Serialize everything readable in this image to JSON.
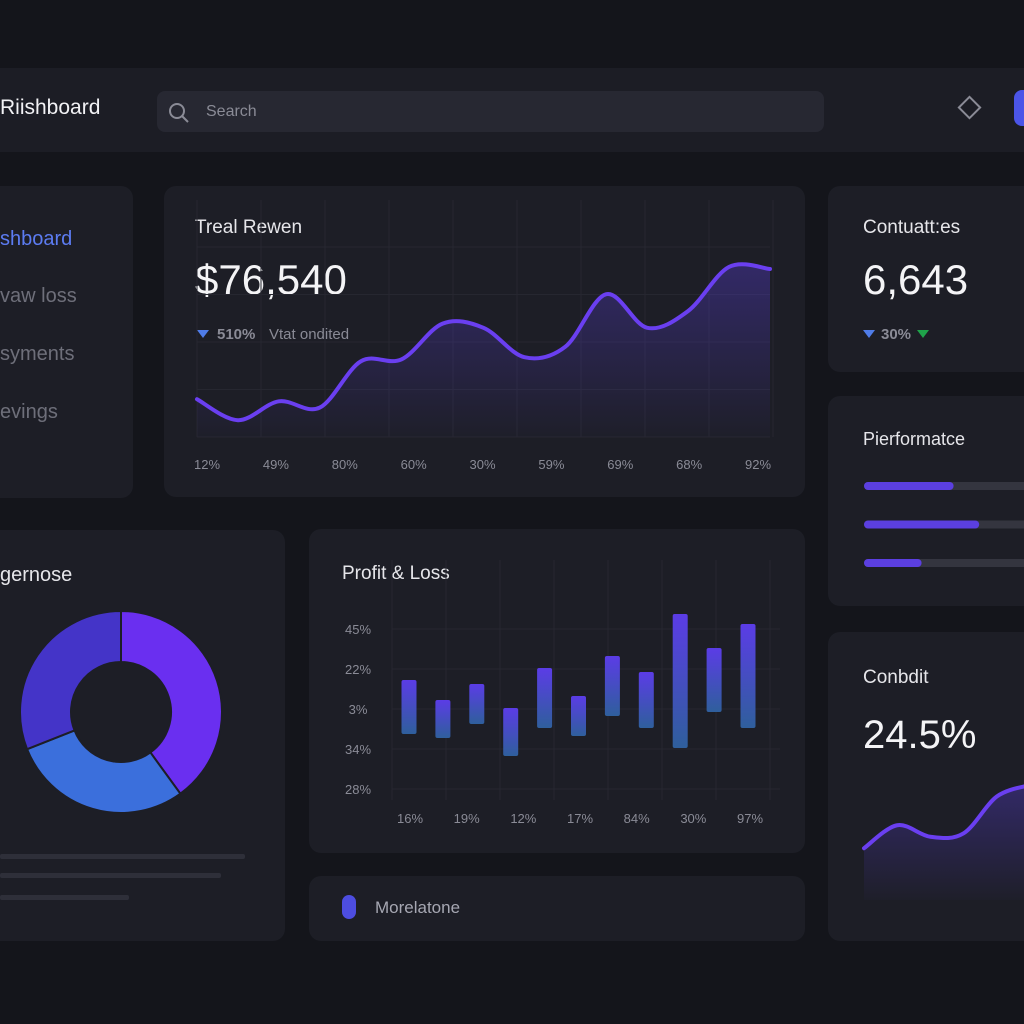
{
  "header": {
    "title": "Riishboard",
    "search_placeholder": "Search"
  },
  "sidebar": {
    "items": [
      "shboard",
      "vaw loss",
      "syments",
      "evings"
    ]
  },
  "revenue_card": {
    "title": "Treal Rewen",
    "value": "$76,540",
    "change": "510%",
    "change_note": "Vtat ondited",
    "chart": {
      "type": "line",
      "color": "#6a3ff0",
      "values": [
        18,
        8,
        17,
        14,
        36,
        37,
        54,
        52,
        38,
        43,
        68,
        52,
        60,
        81,
        80
      ],
      "ylim": [
        0,
        100
      ],
      "x_labels": [
        "12%",
        "49%",
        "80%",
        "60%",
        "30%",
        "59%",
        "69%",
        "68%",
        "92%"
      ]
    }
  },
  "contacts_card": {
    "title": "Contuatt:es",
    "value": "6,643",
    "change": "30%"
  },
  "performance_card": {
    "title": "Pierformatce",
    "values": [
      56,
      72,
      36
    ],
    "color": "#5b3fe0"
  },
  "conversion_card": {
    "title": "Conbdit",
    "value": "24.5%",
    "chart": {
      "type": "line",
      "color": "#6a3ff0",
      "values": [
        45,
        65,
        55,
        58,
        90,
        100
      ],
      "ylim": [
        0,
        100
      ]
    }
  },
  "donut_card": {
    "title": "gernose",
    "chart": {
      "type": "pie",
      "values": [
        40,
        29,
        31
      ],
      "colors": [
        "#6a2ff0",
        "#3b6fdc",
        "#4434c8"
      ]
    }
  },
  "pl_card": {
    "title": "Profit & Loss",
    "chart": {
      "type": "bar",
      "ylim": [
        0,
        100
      ],
      "y_labels": [
        "45%",
        "22%",
        "3%",
        "34%",
        "28%"
      ],
      "x_labels": [
        "16%",
        "19%",
        "12%",
        "17%",
        "84%",
        "30%",
        "97%"
      ],
      "low": [
        33,
        31,
        38,
        22,
        36,
        32,
        42,
        36,
        26,
        44,
        36
      ],
      "high": [
        60,
        50,
        58,
        46,
        66,
        52,
        72,
        64,
        93,
        76,
        88
      ]
    }
  },
  "footer_card": {
    "label": "Morelatone"
  }
}
